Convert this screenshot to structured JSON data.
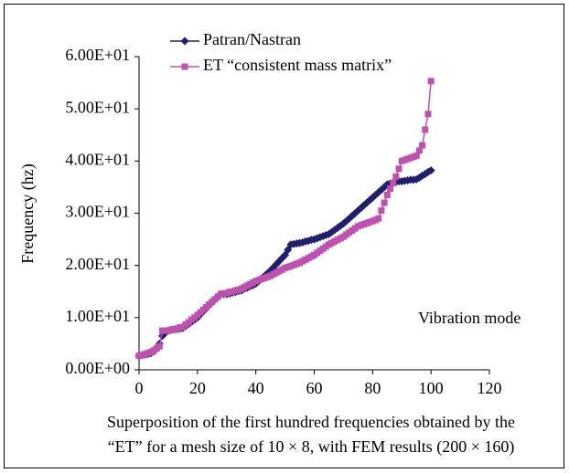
{
  "chart_data": {
    "type": "line",
    "x_label": [
      "Superposition of the first hundred frequencies obtained by the",
      "“ET” for a mesh size of 10 × 8, with FEM results (200 × 160)"
    ],
    "y_label": "Frequency (hz)",
    "annotation": "Vibration mode",
    "x": [
      0,
      1,
      2,
      3,
      4,
      5,
      6,
      7,
      8,
      9,
      10,
      11,
      12,
      13,
      14,
      15,
      16,
      17,
      18,
      19,
      20,
      21,
      22,
      23,
      24,
      25,
      26,
      27,
      28,
      29,
      30,
      31,
      32,
      33,
      34,
      35,
      36,
      37,
      38,
      39,
      40,
      41,
      42,
      43,
      44,
      45,
      46,
      47,
      48,
      49,
      50,
      51,
      52,
      53,
      54,
      55,
      56,
      57,
      58,
      59,
      60,
      61,
      62,
      63,
      64,
      65,
      66,
      67,
      68,
      69,
      70,
      71,
      72,
      73,
      74,
      75,
      76,
      77,
      78,
      79,
      80,
      81,
      82,
      83,
      84,
      85,
      86,
      87,
      88,
      89,
      90,
      91,
      92,
      93,
      94,
      95,
      96,
      97,
      98,
      99,
      100
    ],
    "series": [
      {
        "name": "Patran/Nastran",
        "color": "#1f1f6e",
        "marker": "diamond",
        "values": [
          2.7,
          2.8,
          2.9,
          3.0,
          3.2,
          3.5,
          4.2,
          5.0,
          6.5,
          7.1,
          7.5,
          7.6,
          7.7,
          7.8,
          7.9,
          8.0,
          8.4,
          8.8,
          9.2,
          9.6,
          10.0,
          10.6,
          11.2,
          11.8,
          12.4,
          13.0,
          13.5,
          14.0,
          14.5,
          14.5,
          14.5,
          14.6,
          14.8,
          14.9,
          15.1,
          15.2,
          15.5,
          15.7,
          16.0,
          16.2,
          16.5,
          17.0,
          17.5,
          18.0,
          18.5,
          19.0,
          19.6,
          20.2,
          20.8,
          21.4,
          22.0,
          23.0,
          24.0,
          24.1,
          24.2,
          24.3,
          24.4,
          24.6,
          24.7,
          24.9,
          25.0,
          25.2,
          25.4,
          25.6,
          25.8,
          26.0,
          26.4,
          26.8,
          27.2,
          27.6,
          28.0,
          28.5,
          29.0,
          29.5,
          30.0,
          30.5,
          31.0,
          31.5,
          32.0,
          32.5,
          33.0,
          33.5,
          34.0,
          34.5,
          35.0,
          35.5,
          35.7,
          35.8,
          36.0,
          36.1,
          36.1,
          36.2,
          36.3,
          36.4,
          36.4,
          36.5,
          36.8,
          37.2,
          37.5,
          37.9,
          38.2
        ]
      },
      {
        "name": "ET “consistent mass matrix”",
        "color": "#c050b0",
        "marker": "square",
        "values": [
          2.7,
          2.8,
          3.0,
          3.2,
          3.4,
          3.7,
          4.1,
          4.5,
          7.5,
          7.5,
          7.5,
          7.7,
          7.8,
          7.9,
          8.1,
          8.2,
          8.7,
          9.1,
          9.6,
          10.0,
          10.5,
          11.0,
          11.5,
          12.0,
          12.5,
          13.0,
          13.5,
          14.0,
          14.5,
          14.6,
          14.7,
          14.9,
          15.0,
          15.2,
          15.3,
          15.5,
          15.8,
          16.1,
          16.4,
          16.7,
          17.0,
          17.2,
          17.4,
          17.6,
          17.8,
          18.0,
          18.3,
          18.6,
          18.9,
          19.2,
          19.5,
          19.7,
          19.9,
          20.1,
          20.3,
          20.5,
          20.8,
          21.1,
          21.4,
          21.7,
          22.0,
          22.4,
          22.8,
          23.2,
          23.6,
          24.0,
          24.3,
          24.6,
          24.9,
          25.2,
          25.5,
          25.9,
          26.3,
          26.7,
          27.1,
          27.5,
          27.7,
          27.9,
          28.1,
          28.3,
          28.5,
          28.7,
          29.0,
          30.5,
          32.0,
          33.5,
          34.7,
          35.8,
          37.0,
          38.5,
          40.0,
          40.2,
          40.4,
          40.6,
          40.8,
          41.0,
          42.0,
          43.0,
          46.0,
          49.0,
          55.3
        ]
      }
    ],
    "xlim": [
      0,
      120
    ],
    "xticks": [
      0,
      20,
      40,
      60,
      80,
      100,
      120
    ],
    "ylim": [
      0,
      60
    ],
    "yticks": [
      {
        "value": 0,
        "label": "0.00E+00"
      },
      {
        "value": 10,
        "label": "1.00E+01"
      },
      {
        "value": 20,
        "label": "2.00E+01"
      },
      {
        "value": 30,
        "label": "3.00E+01"
      },
      {
        "value": 40,
        "label": "4.00E+01"
      },
      {
        "value": 50,
        "label": "5.00E+01"
      },
      {
        "value": 60,
        "label": "6.00E+01"
      }
    ],
    "grid": false,
    "legend": "top-left"
  }
}
